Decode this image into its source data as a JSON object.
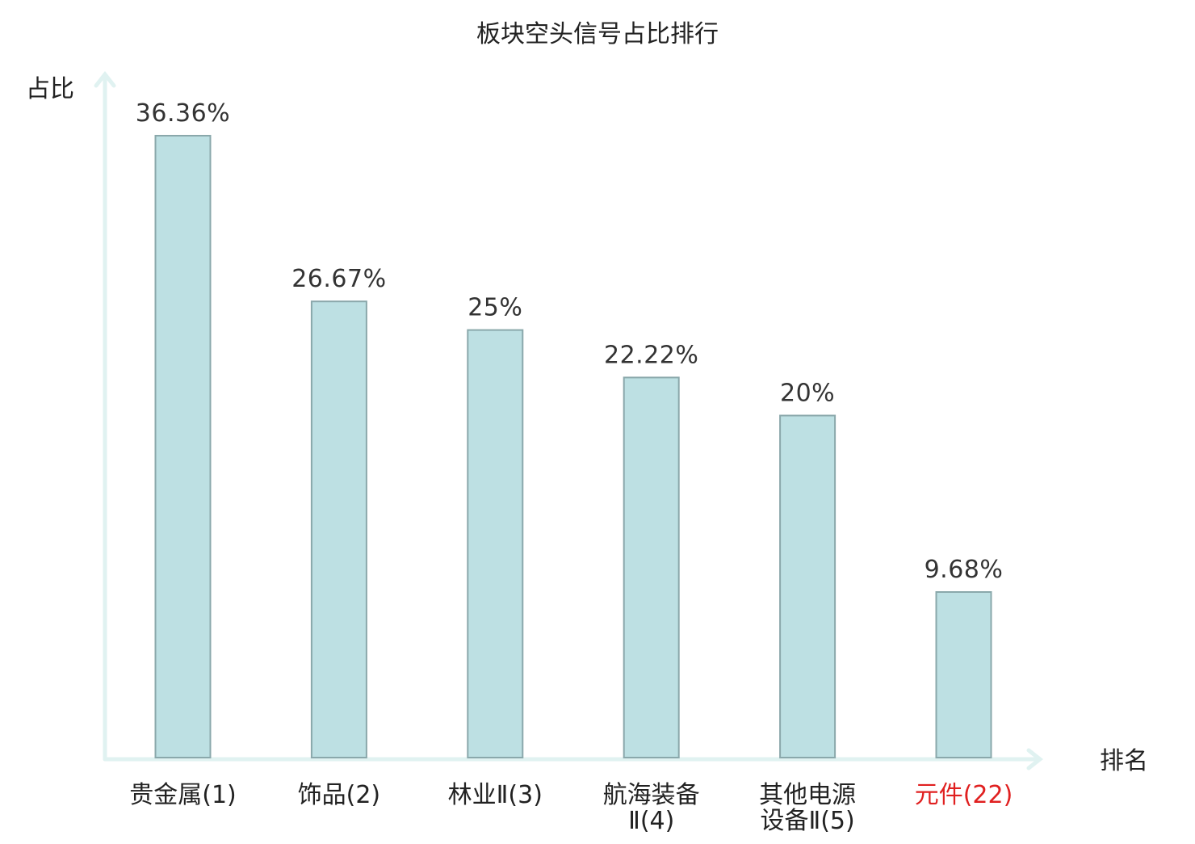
{
  "chart_data": {
    "type": "bar",
    "title": "板块空头信号占比排行",
    "ylabel": "占比",
    "xlabel": "排名",
    "ylim": [
      0,
      40
    ],
    "grid": false,
    "legend": "none",
    "categories": [
      [
        "贵金属(1)"
      ],
      [
        "饰品(2)"
      ],
      [
        "林业Ⅱ(3)"
      ],
      [
        "航海装备",
        "Ⅱ(4)"
      ],
      [
        "其他电源",
        "设备Ⅱ(5)"
      ],
      [
        "元件(22)"
      ]
    ],
    "values": [
      36.36,
      26.67,
      25,
      22.22,
      20,
      9.68
    ],
    "value_labels": [
      "36.36%",
      "26.67%",
      "25%",
      "22.22%",
      "20%",
      "9.68%"
    ],
    "highlight_index": 5,
    "colors": {
      "bar_fill": "#bde0e3",
      "bar_stroke": "#8aa8ab",
      "axis": "#e0f2f1",
      "highlight_text": "#e02020",
      "text": "#222222"
    }
  }
}
